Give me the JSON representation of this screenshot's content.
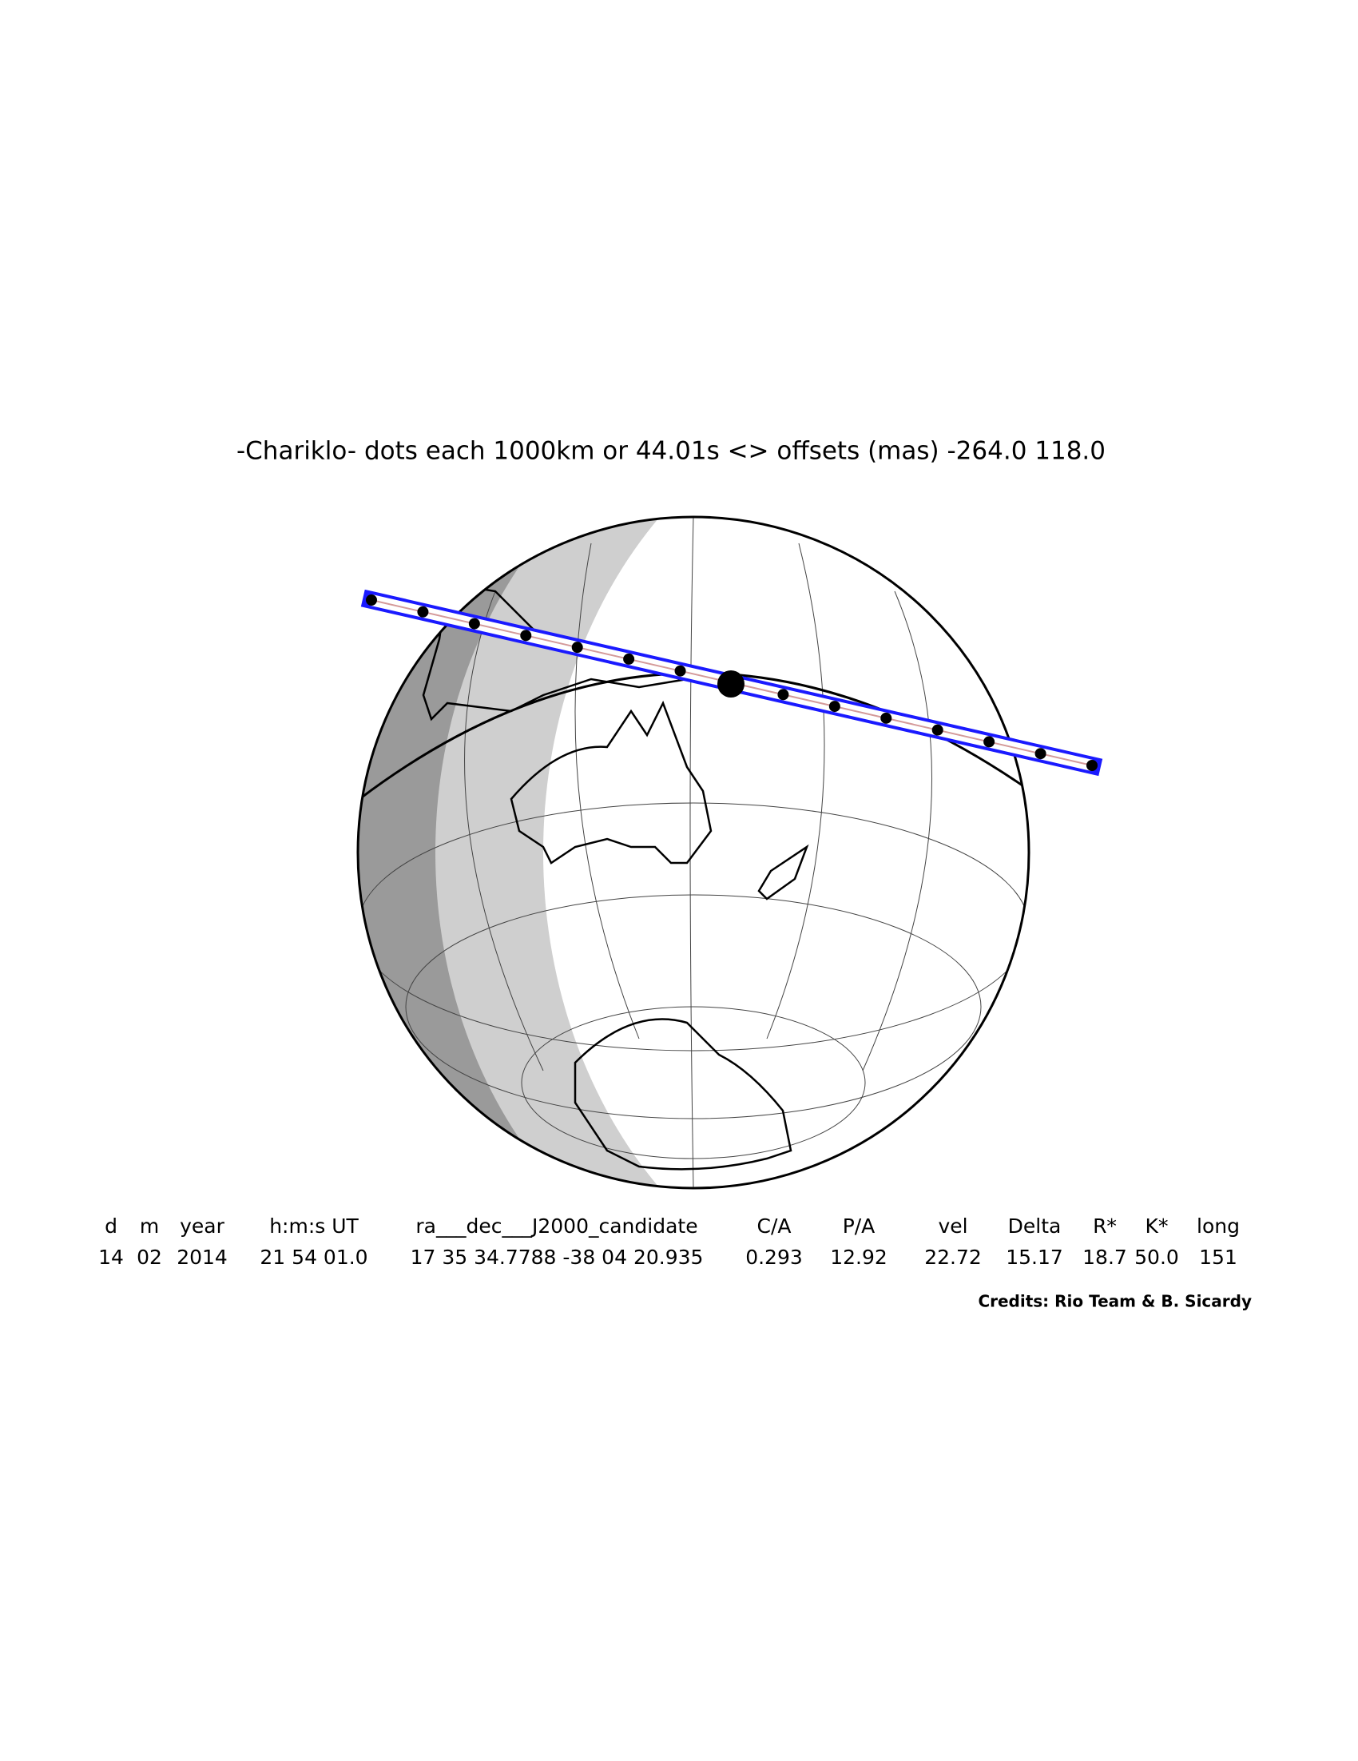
{
  "header": {
    "title": "-Chariklo- dots each 1000km or 44.01s <> offsets (mas) -264.0  118.0"
  },
  "table": {
    "headers": [
      "d",
      "m",
      "year",
      "h:m:s UT",
      "ra___dec___J2000_candidate",
      "C/A",
      "P/A",
      "vel",
      "Delta",
      "R*",
      "K*",
      "long"
    ],
    "rows": [
      [
        "14",
        "02",
        "2014",
        "21 54 01.0",
        "17 35 34.7788 -38 04 20.935",
        "0.293",
        "12.92",
        "22.72",
        "15.17",
        "18.7",
        "50.0",
        "151"
      ]
    ]
  },
  "credits": "Credits: Rio Team & B. Sicardy"
}
